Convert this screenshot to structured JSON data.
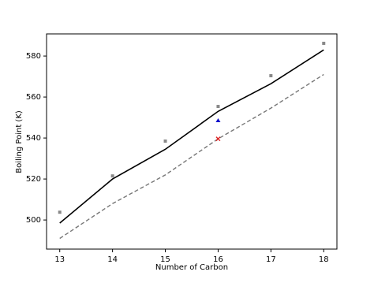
{
  "chart_data": {
    "type": "line",
    "x_label": "Number of Carbon",
    "y_label": "Boiling Point (K)",
    "xlim": [
      12.75,
      18.25
    ],
    "ylim": [
      485.8,
      590.8
    ],
    "xticks": [
      13,
      14,
      15,
      16,
      17,
      18
    ],
    "yticks": [
      500,
      520,
      540,
      560,
      580
    ],
    "series": [
      {
        "color": "#000000",
        "line": "solid",
        "marker": "none",
        "x": [
          13,
          14,
          15,
          16,
          17,
          18
        ],
        "values": [
          498.5,
          520,
          534.5,
          553,
          566.5,
          583
        ]
      },
      {
        "color": "#777777",
        "line": "dashed",
        "marker": "none",
        "x": [
          13,
          14,
          15,
          16,
          17,
          18
        ],
        "values": [
          491,
          508,
          522,
          539.6,
          554.6,
          571
        ]
      },
      {
        "color": "#888888",
        "line": "none",
        "marker": "square",
        "x": [
          13,
          14,
          15,
          16,
          17,
          18
        ],
        "values": [
          503.8,
          521.5,
          538.5,
          555.4,
          570.4,
          586.2
        ]
      },
      {
        "color": "#1010cc",
        "line": "none",
        "marker": "triangle",
        "x": [
          16
        ],
        "values": [
          548.5
        ]
      },
      {
        "color": "#dd2020",
        "line": "none",
        "marker": "cross",
        "x": [
          16
        ],
        "values": [
          539.6
        ]
      }
    ]
  }
}
